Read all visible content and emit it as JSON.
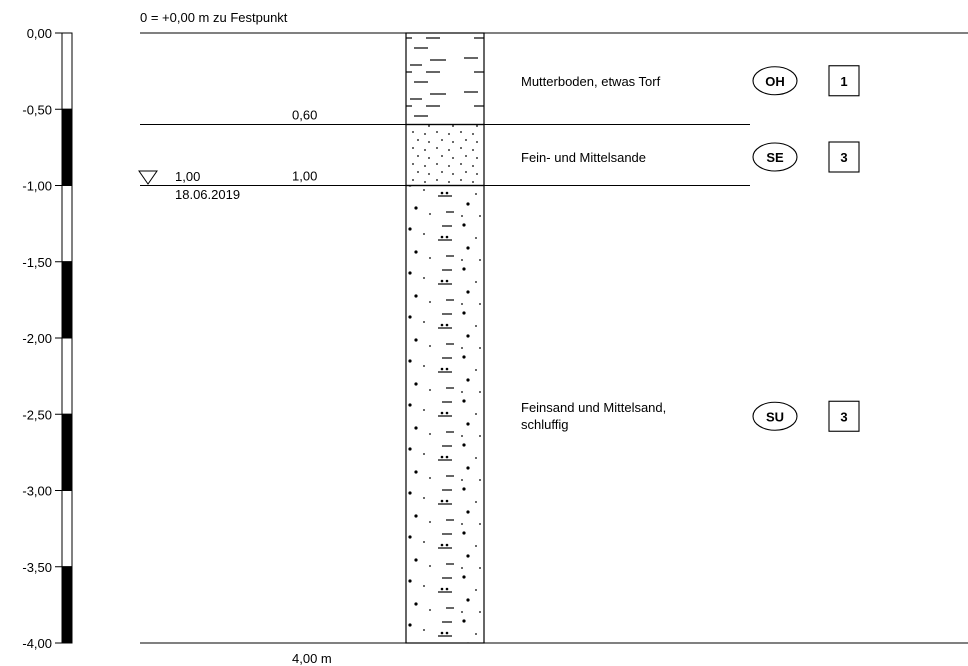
{
  "reference_label": "0 = +0,00 m zu Festpunkt",
  "depth_scale": {
    "ticks": [
      "0,00",
      "-0,50",
      "-1,00",
      "-1,50",
      "-2,00",
      "-2,50",
      "-3,00",
      "-3,50",
      "-4,00"
    ],
    "range_m": [
      0,
      4
    ]
  },
  "groundwater": {
    "depth_m": 1.0,
    "depth_label": "1,00",
    "date": "18.06.2019"
  },
  "layers": [
    {
      "top_m": 0.0,
      "bottom_m": 0.6,
      "bottom_label": "0,60",
      "description": [
        "Mutterboden, etwas Torf"
      ],
      "soil_group": "OH",
      "class_code": "1",
      "pattern": "peat"
    },
    {
      "top_m": 0.6,
      "bottom_m": 1.0,
      "bottom_label": "1,00",
      "description": [
        "Fein- und Mittelsande"
      ],
      "soil_group": "SE",
      "class_code": "3",
      "pattern": "fine-sand"
    },
    {
      "top_m": 1.0,
      "bottom_m": 4.0,
      "bottom_label": "4,00 m",
      "description": [
        "Feinsand und Mittelsand,",
        "schluffig"
      ],
      "soil_group": "SU",
      "class_code": "3",
      "pattern": "silty-sand"
    }
  ]
}
